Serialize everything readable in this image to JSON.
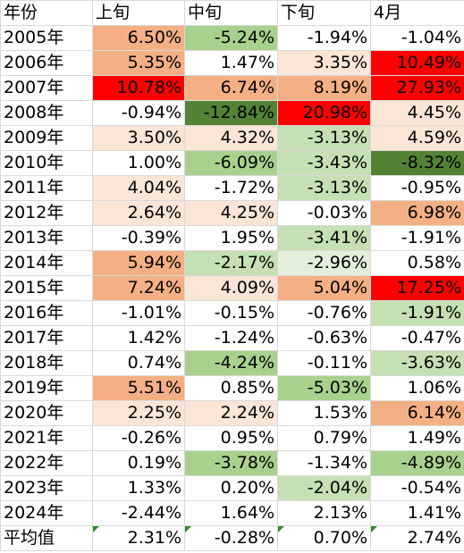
{
  "header": [
    "年份",
    "上旬",
    "中旬",
    "下旬",
    "4月"
  ],
  "rows": [
    {
      "year": "2005年",
      "values": [
        "6.50%",
        "-5.24%",
        "-1.94%",
        "-1.04%"
      ],
      "colors": [
        "#f4b084",
        "#a9d18e",
        "#ffffff",
        "#ffffff"
      ]
    },
    {
      "year": "2006年",
      "values": [
        "5.35%",
        "1.47%",
        "3.35%",
        "10.49%"
      ],
      "colors": [
        "#f4b084",
        "#ffffff",
        "#fbe5d6",
        "#ff0000"
      ]
    },
    {
      "year": "2007年",
      "values": [
        "10.78%",
        "6.74%",
        "8.19%",
        "27.93%"
      ],
      "colors": [
        "#ff0000",
        "#f4b084",
        "#f4b084",
        "#ff0000"
      ]
    },
    {
      "year": "2008年",
      "values": [
        "-0.94%",
        "-12.84%",
        "20.98%",
        "4.45%"
      ],
      "colors": [
        "#ffffff",
        "#548235",
        "#ff0000",
        "#fbe5d6"
      ]
    },
    {
      "year": "2009年",
      "values": [
        "3.50%",
        "4.32%",
        "-3.13%",
        "4.59%"
      ],
      "colors": [
        "#fbe5d6",
        "#fbe5d6",
        "#c5e0b4",
        "#fbe5d6"
      ]
    },
    {
      "year": "2010年",
      "values": [
        "1.00%",
        "-6.09%",
        "-3.43%",
        "-8.32%"
      ],
      "colors": [
        "#ffffff",
        "#a9d18e",
        "#c5e0b4",
        "#548235"
      ]
    },
    {
      "year": "2011年",
      "values": [
        "4.04%",
        "-1.72%",
        "-3.13%",
        "-0.95%"
      ],
      "colors": [
        "#fbe5d6",
        "#ffffff",
        "#c5e0b4",
        "#ffffff"
      ]
    },
    {
      "year": "2012年",
      "values": [
        "2.64%",
        "4.25%",
        "-0.03%",
        "6.98%"
      ],
      "colors": [
        "#fbe5d6",
        "#fbe5d6",
        "#ffffff",
        "#f4b084"
      ]
    },
    {
      "year": "2013年",
      "values": [
        "-0.39%",
        "1.95%",
        "-3.41%",
        "-1.91%"
      ],
      "colors": [
        "#ffffff",
        "#ffffff",
        "#c5e0b4",
        "#ffffff"
      ]
    },
    {
      "year": "2014年",
      "values": [
        "5.94%",
        "-2.17%",
        "-2.96%",
        "0.58%"
      ],
      "colors": [
        "#f4b084",
        "#c5e0b4",
        "#e2efda",
        "#ffffff"
      ]
    },
    {
      "year": "2015年",
      "values": [
        "7.24%",
        "4.09%",
        "5.04%",
        "17.25%"
      ],
      "colors": [
        "#f4b084",
        "#fbe5d6",
        "#f4b084",
        "#ff0000"
      ]
    },
    {
      "year": "2016年",
      "values": [
        "-1.01%",
        "-0.15%",
        "-0.76%",
        "-1.91%"
      ],
      "colors": [
        "#ffffff",
        "#ffffff",
        "#ffffff",
        "#c5e0b4"
      ]
    },
    {
      "year": "2017年",
      "values": [
        "1.42%",
        "-1.24%",
        "-0.63%",
        "-0.47%"
      ],
      "colors": [
        "#ffffff",
        "#ffffff",
        "#ffffff",
        "#ffffff"
      ]
    },
    {
      "year": "2018年",
      "values": [
        "0.74%",
        "-4.24%",
        "-0.11%",
        "-3.63%"
      ],
      "colors": [
        "#ffffff",
        "#a9d18e",
        "#ffffff",
        "#c5e0b4"
      ]
    },
    {
      "year": "2019年",
      "values": [
        "5.51%",
        "0.85%",
        "-5.03%",
        "1.06%"
      ],
      "colors": [
        "#f4b084",
        "#ffffff",
        "#a9d18e",
        "#ffffff"
      ]
    },
    {
      "year": "2020年",
      "values": [
        "2.25%",
        "2.24%",
        "1.53%",
        "6.14%"
      ],
      "colors": [
        "#fbe5d6",
        "#fbe5d6",
        "#ffffff",
        "#f4b084"
      ]
    },
    {
      "year": "2021年",
      "values": [
        "-0.26%",
        "0.95%",
        "0.79%",
        "1.49%"
      ],
      "colors": [
        "#ffffff",
        "#ffffff",
        "#ffffff",
        "#ffffff"
      ]
    },
    {
      "year": "2022年",
      "values": [
        "0.19%",
        "-3.78%",
        "-1.34%",
        "-4.89%"
      ],
      "colors": [
        "#ffffff",
        "#a9d18e",
        "#ffffff",
        "#a9d18e"
      ]
    },
    {
      "year": "2023年",
      "values": [
        "1.33%",
        "0.20%",
        "-2.04%",
        "-0.54%"
      ],
      "colors": [
        "#ffffff",
        "#ffffff",
        "#c5e0b4",
        "#ffffff"
      ]
    },
    {
      "year": "2024年",
      "values": [
        "-2.44%",
        "1.64%",
        "2.13%",
        "1.41%"
      ],
      "colors": [
        "#ffffff",
        "#ffffff",
        "#ffffff",
        "#ffffff"
      ]
    }
  ],
  "average": {
    "label": "平均值",
    "values": [
      "2.31%",
      "-0.28%",
      "0.70%",
      "2.74%"
    ],
    "colors": [
      "#ffffff",
      "#ffffff",
      "#ffffff",
      "#ffffff"
    ],
    "flag_color": "#2e8b2e"
  }
}
